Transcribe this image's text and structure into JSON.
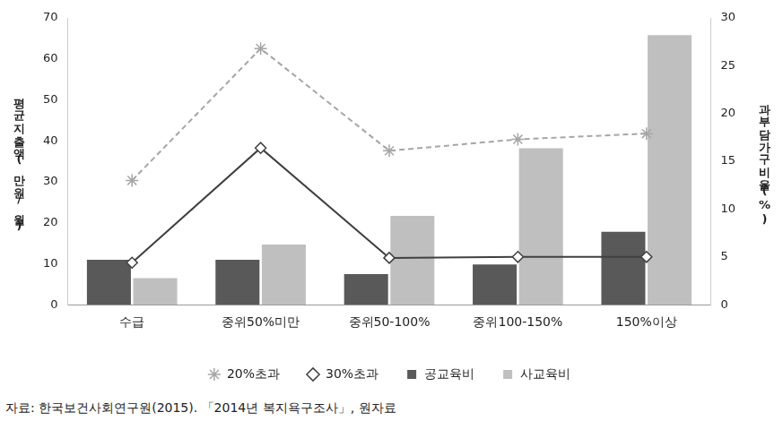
{
  "chart_data": {
    "type": "bar",
    "categories": [
      "수급",
      "중위50%미만",
      "중위50-100%",
      "중위100-150%",
      "150%이상"
    ],
    "y_label": "평균지출액(만원/월)",
    "y2_label": "과부담가구비율(%)",
    "source": "자료: 한국보건사회연구원(2015). 「2014년 복지욕구조사」, 원자료",
    "series": [
      {
        "name": "공교육비",
        "type": "bar",
        "color": "#595959",
        "values": [
          11,
          11,
          7.5,
          9.8,
          17.8
        ]
      },
      {
        "name": "사교육비",
        "type": "bar",
        "color": "#bfbfbf",
        "values": [
          6.5,
          14.7,
          21.7,
          38.2,
          65.8
        ]
      },
      {
        "name": "20%초과",
        "type": "line",
        "axis": "y2",
        "color": "#a6a6a6",
        "line_style": "dashed",
        "marker": "star",
        "values": [
          13,
          26.8,
          16.1,
          17.3,
          17.9
        ]
      },
      {
        "name": "30%초과",
        "type": "line",
        "axis": "y2",
        "color": "#404040",
        "line_style": "solid",
        "marker": "diamond",
        "values": [
          4.4,
          16.4,
          4.9,
          5.0,
          5.0
        ]
      }
    ],
    "ylim": [
      0,
      70
    ],
    "yticks": [
      0,
      10,
      20,
      30,
      40,
      50,
      60,
      70
    ],
    "y2lim": [
      0,
      30
    ],
    "y2ticks": [
      0,
      5,
      10,
      15,
      20,
      25,
      30
    ],
    "grid": false,
    "legend": "bottom"
  }
}
